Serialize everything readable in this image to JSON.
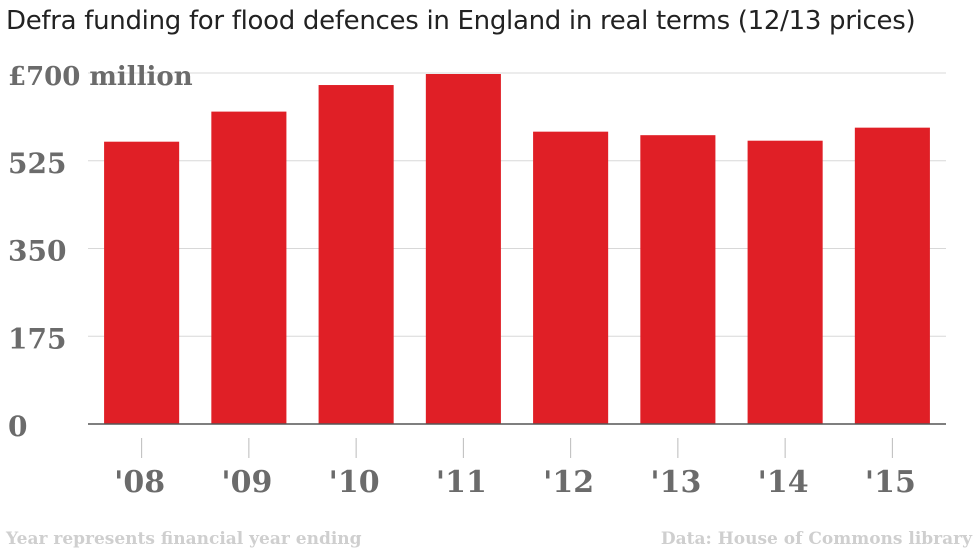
{
  "chart_data": {
    "type": "bar",
    "title": "Defra funding for flood defences in England in real terms (12/13 prices)",
    "categories": [
      "'08",
      "'09",
      "'10",
      "'11",
      "'12",
      "'13",
      "'14",
      "'15"
    ],
    "values": [
      563,
      623,
      676,
      698,
      583,
      576,
      565,
      591
    ],
    "ylim": [
      0,
      700
    ],
    "yticks": [
      0,
      175,
      350,
      525,
      700
    ],
    "ytick_labels": [
      "0",
      "175",
      "350",
      "525",
      "£700 million"
    ],
    "bar_color": "#e01f26",
    "grid": true,
    "footnote": "Year represents financial year ending",
    "source": "Data: House of Commons library"
  }
}
